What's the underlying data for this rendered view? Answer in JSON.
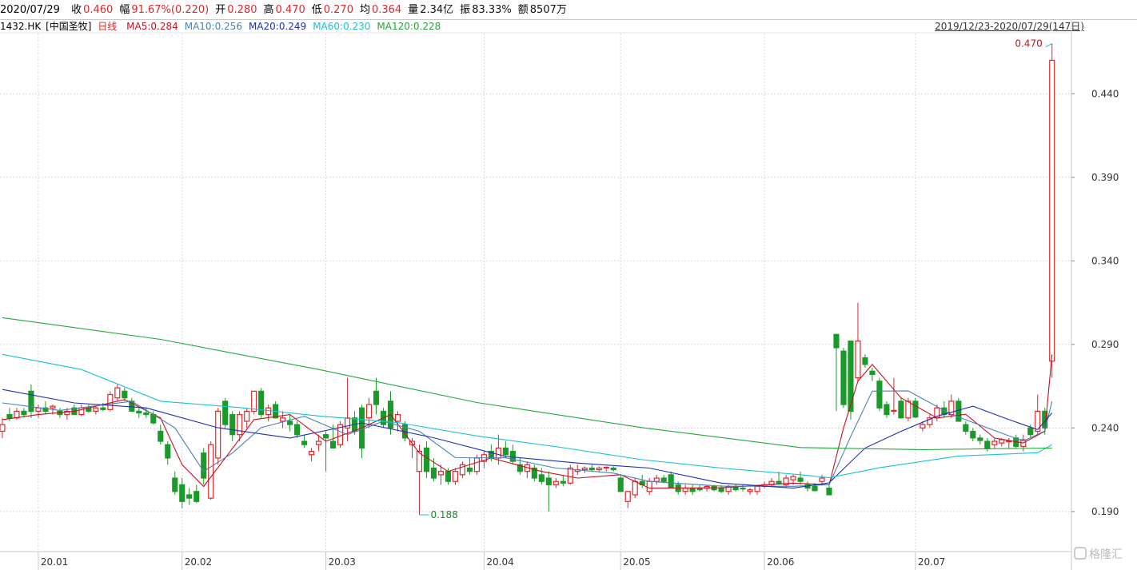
{
  "header": {
    "date": "2020/07/29",
    "fields": [
      {
        "label": "收",
        "value": "0.460",
        "up": true
      },
      {
        "label": "幅",
        "value": "91.67%(0.220)",
        "up": true
      },
      {
        "label": "开",
        "value": "0.280",
        "up": true
      },
      {
        "label": "高",
        "value": "0.470",
        "up": true
      },
      {
        "label": "低",
        "value": "0.270",
        "up": true
      },
      {
        "label": "均",
        "value": "0.364",
        "up": true
      },
      {
        "label": "量",
        "value": "2.34亿",
        "up": false
      },
      {
        "label": "振",
        "value": "83.33%",
        "up": false
      },
      {
        "label": "额",
        "value": "8507万",
        "up": false
      }
    ],
    "code": "1432.HK",
    "stock_name": "[中国圣牧]",
    "period": "日线",
    "range": "2019/12/23-2020/07/29(147日)",
    "watermark": "格隆汇"
  },
  "chart_data": {
    "type": "candlestick",
    "up_color": "#e0262b",
    "down_color": "#1a9a29",
    "grid": true,
    "xlim": [
      -0.33,
      148.7
    ],
    "ylim": [
      0.166,
      0.476
    ],
    "xticks": [
      {
        "value": 5,
        "label": "20.01"
      },
      {
        "value": 25,
        "label": "20.02"
      },
      {
        "value": 45,
        "label": "20.03"
      },
      {
        "value": 67,
        "label": "20.04"
      },
      {
        "value": 86,
        "label": "20.05"
      },
      {
        "value": 106,
        "label": "20.06"
      },
      {
        "value": 127,
        "label": "20.07"
      }
    ],
    "yticks": [
      {
        "value": 0.19,
        "label": "0.190"
      },
      {
        "value": 0.24,
        "label": "0.240"
      },
      {
        "value": 0.29,
        "label": "0.290"
      },
      {
        "value": 0.34,
        "label": "0.340"
      },
      {
        "value": 0.39,
        "label": "0.390"
      },
      {
        "value": 0.44,
        "label": "0.440"
      }
    ],
    "candles": [
      [
        0.238,
        0.246,
        0.234,
        0.242
      ],
      [
        0.248,
        0.252,
        0.244,
        0.246
      ],
      [
        0.246,
        0.252,
        0.245,
        0.25
      ],
      [
        0.25,
        0.252,
        0.246,
        0.248
      ],
      [
        0.262,
        0.266,
        0.246,
        0.25
      ],
      [
        0.25,
        0.254,
        0.246,
        0.252
      ],
      [
        0.252,
        0.256,
        0.248,
        0.25
      ],
      [
        0.252,
        0.254,
        0.248,
        0.253
      ],
      [
        0.25,
        0.252,
        0.246,
        0.248
      ],
      [
        0.248,
        0.252,
        0.245,
        0.25
      ],
      [
        0.252,
        0.254,
        0.248,
        0.248
      ],
      [
        0.248,
        0.254,
        0.247,
        0.252
      ],
      [
        0.252,
        0.254,
        0.249,
        0.25
      ],
      [
        0.25,
        0.253,
        0.248,
        0.252
      ],
      [
        0.252,
        0.255,
        0.25,
        0.251
      ],
      [
        0.251,
        0.262,
        0.25,
        0.26
      ],
      [
        0.258,
        0.266,
        0.256,
        0.264
      ],
      [
        0.262,
        0.264,
        0.256,
        0.258
      ],
      [
        0.256,
        0.258,
        0.25,
        0.25
      ],
      [
        0.25,
        0.252,
        0.246,
        0.249
      ],
      [
        0.249,
        0.252,
        0.246,
        0.248
      ],
      [
        0.248,
        0.25,
        0.242,
        0.243
      ],
      [
        0.238,
        0.242,
        0.23,
        0.232
      ],
      [
        0.23,
        0.232,
        0.218,
        0.222
      ],
      [
        0.21,
        0.214,
        0.2,
        0.202
      ],
      [
        0.206,
        0.21,
        0.192,
        0.196
      ],
      [
        0.2,
        0.204,
        0.194,
        0.198
      ],
      [
        0.202,
        0.206,
        0.195,
        0.196
      ],
      [
        0.225,
        0.228,
        0.206,
        0.21
      ],
      [
        0.198,
        0.232,
        0.197,
        0.23
      ],
      [
        0.222,
        0.252,
        0.218,
        0.25
      ],
      [
        0.256,
        0.258,
        0.24,
        0.242
      ],
      [
        0.248,
        0.25,
        0.232,
        0.236
      ],
      [
        0.236,
        0.25,
        0.232,
        0.248
      ],
      [
        0.244,
        0.252,
        0.24,
        0.25
      ],
      [
        0.25,
        0.262,
        0.248,
        0.262
      ],
      [
        0.262,
        0.264,
        0.246,
        0.248
      ],
      [
        0.248,
        0.254,
        0.244,
        0.252
      ],
      [
        0.254,
        0.256,
        0.246,
        0.246
      ],
      [
        0.244,
        0.25,
        0.24,
        0.246
      ],
      [
        0.244,
        0.248,
        0.238,
        0.242
      ],
      [
        0.242,
        0.244,
        0.234,
        0.236
      ],
      [
        0.232,
        0.236,
        0.228,
        0.23
      ],
      [
        0.224,
        0.228,
        0.22,
        0.226
      ],
      [
        0.23,
        0.236,
        0.226,
        0.232
      ],
      [
        0.236,
        0.238,
        0.214,
        0.234
      ],
      [
        0.232,
        0.242,
        0.228,
        0.228
      ],
      [
        0.23,
        0.244,
        0.228,
        0.242
      ],
      [
        0.24,
        0.27,
        0.232,
        0.246
      ],
      [
        0.246,
        0.25,
        0.236,
        0.238
      ],
      [
        0.252,
        0.254,
        0.222,
        0.228
      ],
      [
        0.246,
        0.258,
        0.24,
        0.254
      ],
      [
        0.262,
        0.27,
        0.248,
        0.254
      ],
      [
        0.25,
        0.252,
        0.24,
        0.242
      ],
      [
        0.256,
        0.262,
        0.236,
        0.24
      ],
      [
        0.244,
        0.25,
        0.238,
        0.248
      ],
      [
        0.242,
        0.244,
        0.232,
        0.234
      ],
      [
        0.23,
        0.234,
        0.222,
        0.232
      ],
      [
        0.214,
        0.23,
        0.188,
        0.226
      ],
      [
        0.228,
        0.232,
        0.21,
        0.214
      ],
      [
        0.216,
        0.222,
        0.208,
        0.21
      ],
      [
        0.212,
        0.218,
        0.206,
        0.214
      ],
      [
        0.214,
        0.216,
        0.206,
        0.208
      ],
      [
        0.208,
        0.216,
        0.206,
        0.214
      ],
      [
        0.212,
        0.22,
        0.21,
        0.218
      ],
      [
        0.216,
        0.222,
        0.212,
        0.214
      ],
      [
        0.214,
        0.224,
        0.212,
        0.222
      ],
      [
        0.22,
        0.226,
        0.216,
        0.224
      ],
      [
        0.226,
        0.23,
        0.22,
        0.222
      ],
      [
        0.222,
        0.236,
        0.218,
        0.228
      ],
      [
        0.228,
        0.232,
        0.222,
        0.224
      ],
      [
        0.226,
        0.23,
        0.218,
        0.22
      ],
      [
        0.218,
        0.222,
        0.212,
        0.214
      ],
      [
        0.214,
        0.22,
        0.21,
        0.218
      ],
      [
        0.216,
        0.218,
        0.208,
        0.21
      ],
      [
        0.212,
        0.216,
        0.206,
        0.208
      ],
      [
        0.21,
        0.214,
        0.19,
        0.206
      ],
      [
        0.206,
        0.21,
        0.204,
        0.208
      ],
      [
        0.208,
        0.212,
        0.205,
        0.207
      ],
      [
        0.207,
        0.218,
        0.206,
        0.216
      ],
      [
        0.214,
        0.218,
        0.212,
        0.215
      ],
      [
        0.215,
        0.217,
        0.213,
        0.216
      ],
      [
        0.216,
        0.218,
        0.214,
        0.215
      ],
      [
        0.215,
        0.217,
        0.214,
        0.216
      ],
      [
        0.216,
        0.217,
        0.214,
        0.2165
      ],
      [
        0.216,
        0.217,
        0.214,
        0.215
      ],
      [
        0.21,
        0.212,
        0.202,
        0.202
      ],
      [
        0.196,
        0.202,
        0.192,
        0.202
      ],
      [
        0.2,
        0.21,
        0.198,
        0.208
      ],
      [
        0.208,
        0.212,
        0.204,
        0.206
      ],
      [
        0.202,
        0.21,
        0.2,
        0.208
      ],
      [
        0.208,
        0.212,
        0.206,
        0.21
      ],
      [
        0.21,
        0.212,
        0.207,
        0.208
      ],
      [
        0.212,
        0.214,
        0.204,
        0.204
      ],
      [
        0.206,
        0.208,
        0.2,
        0.202
      ],
      [
        0.202,
        0.206,
        0.2,
        0.204
      ],
      [
        0.204,
        0.206,
        0.2,
        0.202
      ],
      [
        0.204,
        0.206,
        0.202,
        0.203
      ],
      [
        0.204,
        0.206,
        0.202,
        0.205
      ],
      [
        0.205,
        0.206,
        0.202,
        0.203
      ],
      [
        0.204,
        0.206,
        0.201,
        0.202
      ],
      [
        0.202,
        0.206,
        0.2,
        0.205
      ],
      [
        0.205,
        0.206,
        0.202,
        0.203
      ],
      [
        0.204,
        0.206,
        0.202,
        0.2035
      ],
      [
        0.202,
        0.204,
        0.2,
        0.203
      ],
      [
        0.202,
        0.206,
        0.2,
        0.205
      ],
      [
        0.205,
        0.208,
        0.204,
        0.206
      ],
      [
        0.206,
        0.21,
        0.205,
        0.208
      ],
      [
        0.208,
        0.214,
        0.206,
        0.207
      ],
      [
        0.206,
        0.212,
        0.204,
        0.21
      ],
      [
        0.209,
        0.212,
        0.206,
        0.211
      ],
      [
        0.21,
        0.214,
        0.206,
        0.208
      ],
      [
        0.206,
        0.208,
        0.202,
        0.204
      ],
      [
        0.205,
        0.207,
        0.202,
        0.2025
      ],
      [
        0.208,
        0.212,
        0.206,
        0.21
      ],
      [
        0.204,
        0.206,
        0.2,
        0.2
      ],
      [
        0.296,
        0.296,
        0.25,
        0.288
      ],
      [
        0.286,
        0.288,
        0.252,
        0.254
      ],
      [
        0.292,
        0.292,
        0.245,
        0.25
      ],
      [
        0.27,
        0.315,
        0.268,
        0.292
      ],
      [
        0.282,
        0.284,
        0.276,
        0.278
      ],
      [
        0.274,
        0.276,
        0.268,
        0.272
      ],
      [
        0.268,
        0.27,
        0.25,
        0.252
      ],
      [
        0.254,
        0.256,
        0.246,
        0.248
      ],
      [
        0.25,
        0.27,
        0.248,
        0.2505
      ],
      [
        0.256,
        0.258,
        0.246,
        0.246
      ],
      [
        0.246,
        0.258,
        0.244,
        0.256
      ],
      [
        0.256,
        0.258,
        0.246,
        0.2465
      ],
      [
        0.24,
        0.244,
        0.238,
        0.242
      ],
      [
        0.242,
        0.248,
        0.24,
        0.246
      ],
      [
        0.246,
        0.254,
        0.244,
        0.252
      ],
      [
        0.252,
        0.256,
        0.246,
        0.248
      ],
      [
        0.248,
        0.26,
        0.246,
        0.256
      ],
      [
        0.256,
        0.258,
        0.244,
        0.244
      ],
      [
        0.242,
        0.244,
        0.236,
        0.238
      ],
      [
        0.238,
        0.24,
        0.232,
        0.234
      ],
      [
        0.234,
        0.236,
        0.23,
        0.2325
      ],
      [
        0.232,
        0.234,
        0.226,
        0.228
      ],
      [
        0.23,
        0.234,
        0.228,
        0.232
      ],
      [
        0.231,
        0.234,
        0.229,
        0.233
      ],
      [
        0.232,
        0.234,
        0.228,
        0.2322
      ],
      [
        0.234,
        0.236,
        0.228,
        0.229
      ],
      [
        0.229,
        0.236,
        0.226,
        0.233
      ],
      [
        0.24,
        0.242,
        0.234,
        0.236
      ],
      [
        0.238,
        0.26,
        0.236,
        0.25
      ],
      [
        0.25,
        0.252,
        0.236,
        0.24
      ],
      [
        0.28,
        0.47,
        0.27,
        0.46
      ]
    ],
    "series": [
      {
        "name": "MA5:0.284",
        "color": "#c8101e",
        "x": [
          0,
          5,
          10,
          17,
          22,
          25,
          28,
          31,
          35,
          40,
          45,
          50,
          54,
          58,
          62,
          68,
          75,
          80,
          86,
          90,
          100,
          110,
          115,
          117,
          119,
          121,
          125,
          130,
          134,
          138,
          142,
          145,
          146
        ],
        "values": [
          0.245,
          0.248,
          0.25,
          0.257,
          0.246,
          0.218,
          0.205,
          0.222,
          0.245,
          0.248,
          0.232,
          0.24,
          0.248,
          0.225,
          0.214,
          0.222,
          0.214,
          0.21,
          0.212,
          0.204,
          0.2042,
          0.207,
          0.206,
          0.24,
          0.268,
          0.278,
          0.258,
          0.246,
          0.2482,
          0.234,
          0.231,
          0.238,
          0.284
        ]
      },
      {
        "name": "MA10:0.256",
        "color": "#4a80b8",
        "x": [
          0,
          8,
          18,
          24,
          28,
          32,
          36,
          42,
          48,
          53,
          58,
          63,
          70,
          77,
          85,
          90,
          100,
          110,
          115,
          118,
          121,
          126,
          132,
          137,
          142,
          145,
          146
        ],
        "values": [
          0.255,
          0.2505,
          0.256,
          0.24,
          0.214,
          0.225,
          0.2402,
          0.247,
          0.236,
          0.244,
          0.238,
          0.2222,
          0.2221,
          0.216,
          0.213,
          0.208,
          0.2052,
          0.2051,
          0.2061,
          0.235,
          0.262,
          0.2622,
          0.2481,
          0.2401,
          0.2321,
          0.2382,
          0.256
        ]
      },
      {
        "name": "MA20:0.249",
        "color": "#1c2fb4",
        "x": [
          0,
          10,
          20,
          30,
          40,
          50,
          60,
          70,
          80,
          90,
          100,
          110,
          115,
          120,
          125,
          130,
          135,
          140,
          144,
          146
        ],
        "values": [
          0.263,
          0.255,
          0.252,
          0.2401,
          0.234,
          0.243,
          0.2341,
          0.223,
          0.219,
          0.216,
          0.207,
          0.204,
          0.2072,
          0.228,
          0.238,
          0.247,
          0.253,
          0.245,
          0.239,
          0.249
        ]
      },
      {
        "name": "MA60:0.230",
        "color": "#17c2d4",
        "x": [
          0,
          11,
          22,
          33,
          44,
          55,
          66,
          78,
          89,
          100,
          111,
          115,
          122,
          133,
          144,
          146
        ],
        "values": [
          0.284,
          0.275,
          0.256,
          0.2522,
          0.2472,
          0.2432,
          0.2352,
          0.2282,
          0.221,
          0.216,
          0.212,
          0.2102,
          0.2162,
          0.2232,
          0.2252,
          0.23
        ]
      },
      {
        "name": "MA120:0.228",
        "color": "#22a83a",
        "x": [
          0,
          22,
          44,
          66,
          89,
          111,
          128,
          146
        ],
        "values": [
          0.306,
          0.293,
          0.275,
          0.2552,
          0.2402,
          0.2283,
          0.227,
          0.228
        ]
      }
    ],
    "annotations": [
      {
        "index": 146,
        "value": 0.47,
        "label": "0.470",
        "side": "left"
      },
      {
        "index": 58,
        "value": 0.188,
        "label": "0.188",
        "side": "right"
      }
    ]
  }
}
